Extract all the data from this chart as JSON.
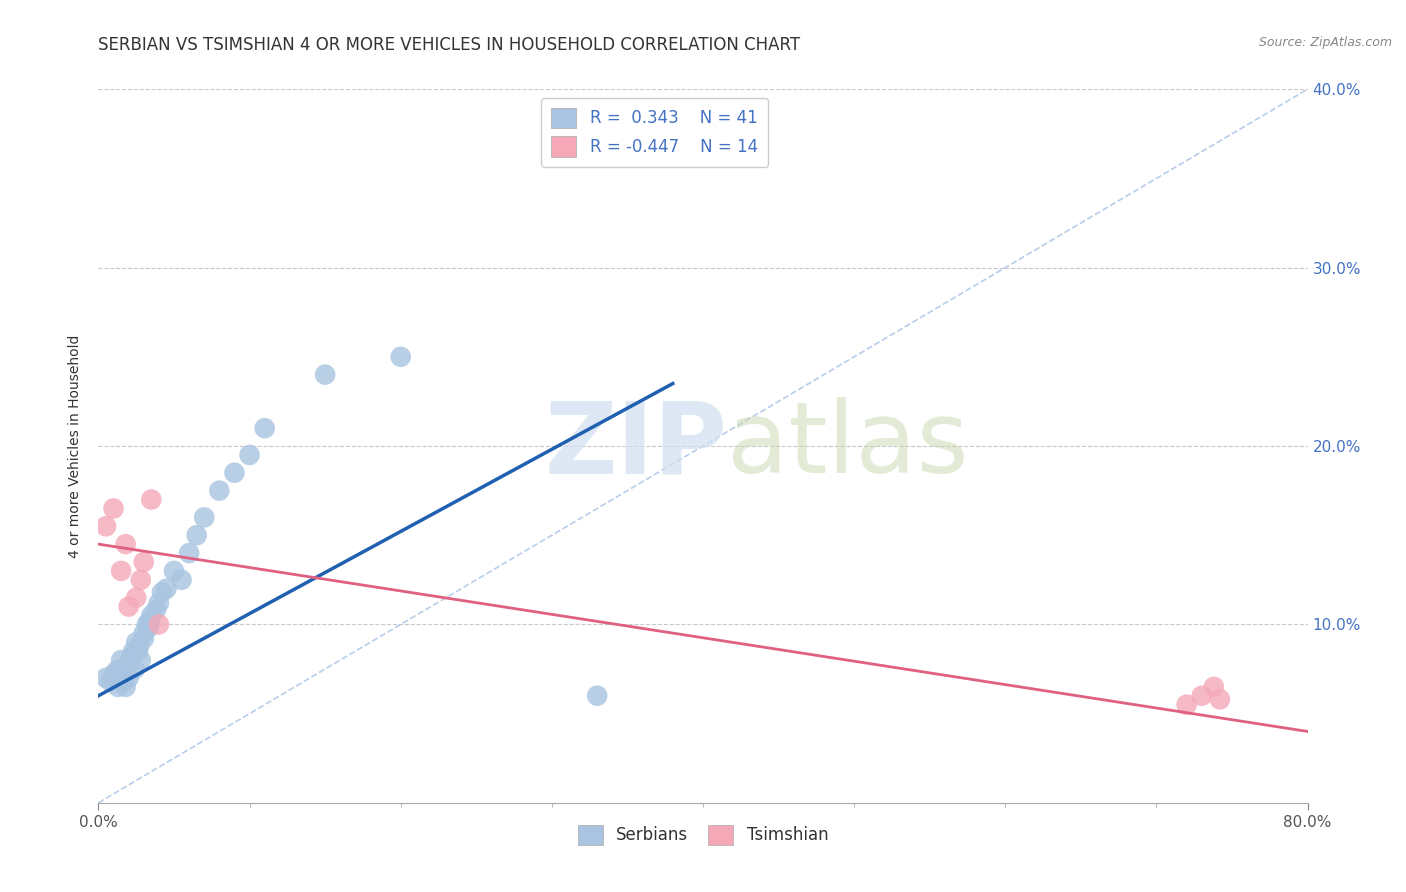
{
  "title": "SERBIAN VS TSIMSHIAN 4 OR MORE VEHICLES IN HOUSEHOLD CORRELATION CHART",
  "source": "Source: ZipAtlas.com",
  "ylabel": "4 or more Vehicles in Household",
  "xlim": [
    0.0,
    0.8
  ],
  "ylim": [
    0.0,
    0.4
  ],
  "xtick_major": [
    0.0,
    0.8
  ],
  "xtick_major_labels": [
    "0.0%",
    "80.0%"
  ],
  "xtick_minor": [
    0.1,
    0.2,
    0.3,
    0.4,
    0.5,
    0.6,
    0.7
  ],
  "ytick_major": [
    0.1,
    0.2,
    0.3,
    0.4
  ],
  "ytick_major_labels": [
    "10.0%",
    "20.0%",
    "30.0%",
    "40.0%"
  ],
  "ytick_right_labels": [
    "10.0%",
    "20.0%",
    "30.0%",
    "40.0%"
  ],
  "legend_label1": "Serbians",
  "legend_label2": "Tsimshian",
  "legend_R1": "R =  0.343",
  "legend_N1": "N = 41",
  "legend_R2": "R = -0.447",
  "legend_N2": "N = 14",
  "color_serbian": "#a8c4e0",
  "color_tsimshian": "#f4a8b8",
  "line_color_serbian": "#2060b0",
  "line_color_tsimshian": "#e06080",
  "diag_color": "#b0c8e8",
  "background_color": "#ffffff",
  "title_color": "#333333",
  "title_fontsize": 12,
  "axis_label_fontsize": 10,
  "tick_fontsize": 11,
  "right_tick_color": "#4472c4",
  "watermark_color": "#d0dff0",
  "serbian_x": [
    0.005,
    0.008,
    0.01,
    0.012,
    0.013,
    0.015,
    0.015,
    0.016,
    0.017,
    0.018,
    0.02,
    0.02,
    0.022,
    0.023,
    0.024,
    0.025,
    0.026,
    0.027,
    0.028,
    0.03,
    0.03,
    0.032,
    0.033,
    0.034,
    0.035,
    0.04,
    0.042,
    0.045,
    0.05,
    0.055,
    0.06,
    0.065,
    0.07,
    0.08,
    0.09,
    0.1,
    0.11,
    0.15,
    0.2,
    0.33,
    0.038
  ],
  "serbian_y": [
    0.07,
    0.068,
    0.072,
    0.074,
    0.065,
    0.075,
    0.08,
    0.072,
    0.068,
    0.065,
    0.078,
    0.07,
    0.082,
    0.085,
    0.075,
    0.09,
    0.085,
    0.088,
    0.08,
    0.092,
    0.095,
    0.1,
    0.098,
    0.102,
    0.105,
    0.112,
    0.118,
    0.12,
    0.13,
    0.125,
    0.14,
    0.15,
    0.16,
    0.175,
    0.185,
    0.195,
    0.21,
    0.24,
    0.25,
    0.06,
    0.108
  ],
  "tsimshian_x": [
    0.005,
    0.01,
    0.015,
    0.018,
    0.02,
    0.025,
    0.028,
    0.03,
    0.035,
    0.04,
    0.72,
    0.73,
    0.738,
    0.742
  ],
  "tsimshian_y": [
    0.155,
    0.165,
    0.13,
    0.145,
    0.11,
    0.115,
    0.125,
    0.135,
    0.17,
    0.1,
    0.055,
    0.06,
    0.065,
    0.058
  ],
  "serbian_line_x": [
    0.0,
    0.38
  ],
  "serbian_line_y": [
    0.06,
    0.235
  ],
  "tsimshian_line_x": [
    0.0,
    0.8
  ],
  "tsimshian_line_y": [
    0.145,
    0.04
  ],
  "diag_line_x": [
    0.0,
    0.8
  ],
  "diag_line_y": [
    0.0,
    0.4
  ]
}
